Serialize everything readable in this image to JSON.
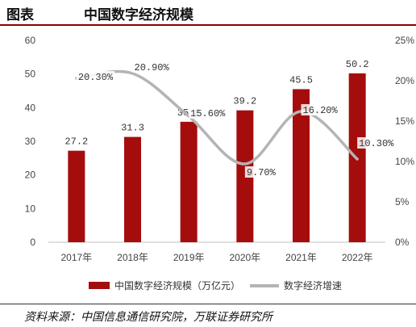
{
  "header": {
    "label": "图表",
    "title": "中国数字经济规模"
  },
  "source": "资料来源：中国信息通信研究院，万联证券研究所",
  "chart_data": {
    "type": "bar",
    "categories": [
      "2017年",
      "2018年",
      "2019年",
      "2020年",
      "2021年",
      "2022年"
    ],
    "series": [
      {
        "name": "中国数字经济规模（万亿元）",
        "type": "bar",
        "axis": "left",
        "values": [
          27.2,
          31.3,
          35.8,
          39.2,
          45.5,
          50.2
        ],
        "labels": [
          "27.2",
          "31.3",
          "35.8",
          "39.2",
          "45.5",
          "50.2"
        ],
        "color": "#a50d0d"
      },
      {
        "name": "数字经济增速",
        "type": "line",
        "axis": "right",
        "values": [
          20.3,
          20.9,
          15.6,
          9.7,
          16.2,
          10.3
        ],
        "labels": [
          "20.30%",
          "20.90%",
          "15.60%",
          "9.70%",
          "16.20%",
          "10.30%"
        ],
        "color": "#b4b4b4"
      }
    ],
    "y_left": {
      "ticks": [
        "0",
        "10",
        "20",
        "30",
        "40",
        "50",
        "60"
      ],
      "ylim": [
        0,
        60
      ]
    },
    "y_right": {
      "ticks": [
        "0%",
        "5%",
        "10%",
        "15%",
        "20%",
        "25%"
      ],
      "ylim": [
        0,
        25
      ]
    },
    "grid": false,
    "legend_position": "bottom"
  }
}
